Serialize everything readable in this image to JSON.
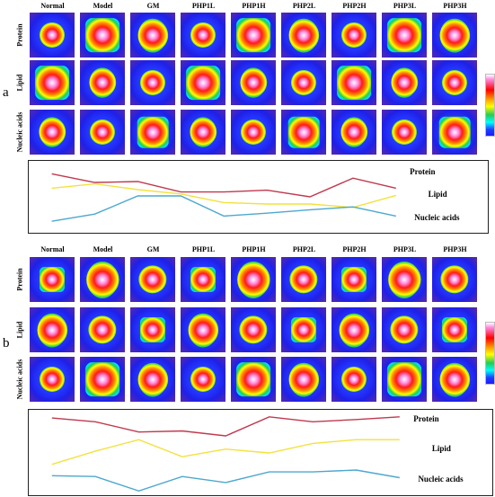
{
  "columns": [
    "Normal",
    "Model",
    "GM",
    "PHP1L",
    "PHP1H",
    "PHP2L",
    "PHP2H",
    "PHP3L",
    "PHP3H"
  ],
  "rows": [
    "Protein",
    "Lipid",
    "Nucleic acids"
  ],
  "panels": [
    {
      "label": "a",
      "trend": {
        "series": [
          {
            "name": "Protein",
            "color": "#c0394e",
            "values": [
              0.85,
              0.55,
              0.58,
              0.22,
              0.22,
              0.28,
              0.05,
              0.7,
              0.35
            ]
          },
          {
            "name": "Lipid",
            "color": "#f2e23d",
            "values": [
              0.35,
              0.5,
              0.3,
              0.15,
              -0.15,
              -0.2,
              -0.2,
              -0.32,
              0.1
            ]
          },
          {
            "name": "Nucleic acids",
            "color": "#4ca8cf",
            "values": [
              -0.8,
              -0.55,
              0.08,
              0.08,
              -0.62,
              -0.52,
              -0.4,
              -0.3,
              -0.62
            ]
          }
        ]
      }
    },
    {
      "label": "b",
      "trend": {
        "series": [
          {
            "name": "Protein",
            "color": "#c0394e",
            "values": [
              0.92,
              0.82,
              0.55,
              0.58,
              0.45,
              0.95,
              0.82,
              0.88,
              0.95
            ]
          },
          {
            "name": "Lipid",
            "color": "#f2e23d",
            "values": [
              -0.3,
              0.05,
              0.35,
              -0.1,
              0.1,
              0.0,
              0.25,
              0.35,
              0.35
            ]
          },
          {
            "name": "Nucleic acids",
            "color": "#4ca8cf",
            "values": [
              -0.6,
              -0.62,
              -1.0,
              -0.62,
              -0.78,
              -0.5,
              -0.5,
              -0.45,
              -0.65
            ]
          }
        ]
      }
    }
  ],
  "colormap": {
    "colors": [
      "#1a1aff",
      "#1f3fff",
      "#00ffff",
      "#22cc55",
      "#ffff00",
      "#ff9900",
      "#ff0000",
      "#ff88dd",
      "#ffffff"
    ]
  }
}
